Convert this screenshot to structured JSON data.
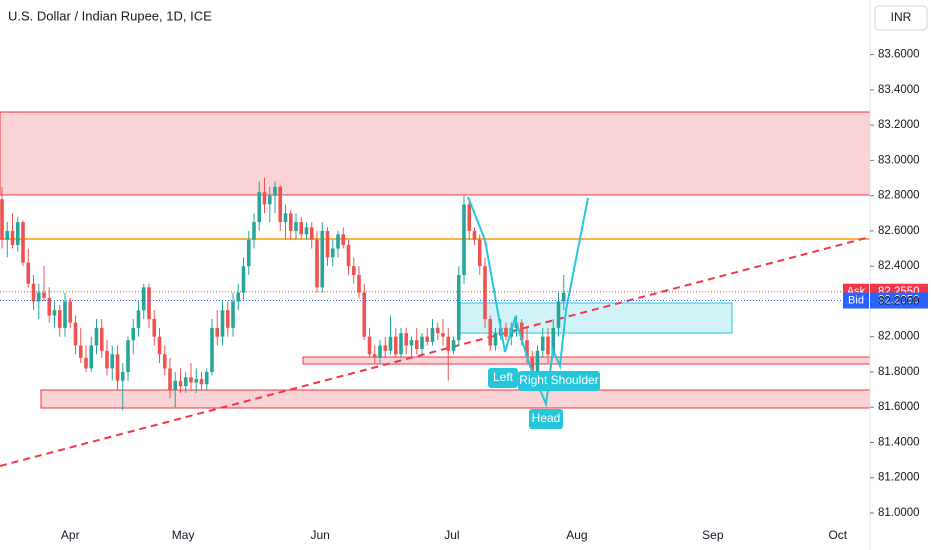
{
  "chart_data": {
    "type": "candlestick",
    "title": "U.S. Dollar / Indian Rupee, 1D, ICE",
    "currency": "INR",
    "ylim": [
      80.96,
      83.91
    ],
    "yticks": [
      {
        "value": 81.0,
        "label": "81.0000"
      },
      {
        "value": 81.2,
        "label": "81.2000"
      },
      {
        "value": 81.4,
        "label": "81.4000"
      },
      {
        "value": 81.6,
        "label": "81.6000"
      },
      {
        "value": 81.8,
        "label": "81.8000"
      },
      {
        "value": 82.0,
        "label": "82.0000"
      },
      {
        "value": 82.2,
        "label": "82.2000"
      },
      {
        "value": 82.4,
        "label": "82.4000"
      },
      {
        "value": 82.6,
        "label": "82.6000"
      },
      {
        "value": 82.8,
        "label": "82.8000"
      },
      {
        "value": 83.0,
        "label": "83.0000"
      },
      {
        "value": 83.2,
        "label": "83.2000"
      },
      {
        "value": 83.4,
        "label": "83.4000"
      },
      {
        "value": 83.6,
        "label": "83.6000"
      }
    ],
    "xticks": [
      {
        "value": 13,
        "label": "Apr"
      },
      {
        "value": 34.5,
        "label": "May"
      },
      {
        "value": 60.6,
        "label": "Jun"
      },
      {
        "value": 85.7,
        "label": "Jul"
      },
      {
        "value": 109.5,
        "label": "Aug"
      },
      {
        "value": 135.4,
        "label": "Sep"
      },
      {
        "value": 159.2,
        "label": "Oct"
      }
    ],
    "up_color": "#26a69a",
    "down_color": "#ef5350",
    "open": [
      82.78,
      82.55,
      82.6,
      82.52,
      82.65,
      82.42,
      82.3,
      82.2,
      82.25,
      82.22,
      82.12,
      82.15,
      82.05,
      82.2,
      82.08,
      81.95,
      81.88,
      81.82,
      81.95,
      82.05,
      81.92,
      81.82,
      81.9,
      81.75,
      81.8,
      81.98,
      82.05,
      82.15,
      82.28,
      82.1,
      82.0,
      81.9,
      81.82,
      81.7,
      81.75,
      81.72,
      81.77,
      81.74,
      81.76,
      81.73,
      81.8,
      82.05,
      82.0,
      82.15,
      82.05,
      82.2,
      82.25,
      82.4,
      82.55,
      82.65,
      82.82,
      82.75,
      82.8,
      82.85,
      82.65,
      82.7,
      82.6,
      82.65,
      82.58,
      82.62,
      82.55,
      82.28,
      82.6,
      82.45,
      82.5,
      82.58,
      82.52,
      82.4,
      82.35,
      82.25,
      82.0,
      81.9,
      81.88,
      81.95,
      81.92,
      82.0,
      81.9,
      82.02,
      81.95,
      81.98,
      81.93,
      82.0,
      81.97,
      82.05,
      82.02,
      82.0,
      81.92,
      81.98,
      82.35,
      82.75,
      82.6,
      82.55,
      82.4,
      82.1,
      81.95,
      82.02,
      82.05,
      82.0,
      82.05,
      82.08,
      81.98,
      81.88,
      81.8,
      81.92,
      82.0,
      81.9,
      82.05,
      82.2
    ],
    "high": [
      82.85,
      82.65,
      82.7,
      82.68,
      82.66,
      82.5,
      82.35,
      82.3,
      82.4,
      82.28,
      82.2,
      82.18,
      82.25,
      82.22,
      82.12,
      82.05,
      81.95,
      82.0,
      82.1,
      82.1,
      81.98,
      81.95,
      81.95,
      81.85,
      82.0,
      82.1,
      82.2,
      82.3,
      82.3,
      82.15,
      82.05,
      81.95,
      81.88,
      81.8,
      81.82,
      81.8,
      81.85,
      81.82,
      81.8,
      81.82,
      82.1,
      82.15,
      82.2,
      82.2,
      82.25,
      82.3,
      82.45,
      82.6,
      82.7,
      82.88,
      82.9,
      82.85,
      82.88,
      82.86,
      82.75,
      82.72,
      82.7,
      82.68,
      82.65,
      82.65,
      82.6,
      82.65,
      82.62,
      82.55,
      82.6,
      82.62,
      82.55,
      82.45,
      82.4,
      82.3,
      82.05,
      81.95,
      81.98,
      82.0,
      82.12,
      82.05,
      82.05,
      82.05,
      82.0,
      82.05,
      82.02,
      82.05,
      82.1,
      82.08,
      82.1,
      82.05,
      82.0,
      82.4,
      82.8,
      82.78,
      82.62,
      82.58,
      82.45,
      82.12,
      82.05,
      82.1,
      82.08,
      82.08,
      82.12,
      82.1,
      82.05,
      81.92,
      81.95,
      82.05,
      82.05,
      82.1,
      82.25,
      82.35
    ],
    "low": [
      82.5,
      82.45,
      82.5,
      82.48,
      82.4,
      82.28,
      82.15,
      82.1,
      82.2,
      82.08,
      82.05,
      82.0,
      82.0,
      82.05,
      81.9,
      81.85,
      81.8,
      81.8,
      81.9,
      81.88,
      81.78,
      81.75,
      81.7,
      81.58,
      81.75,
      81.9,
      82.0,
      82.1,
      82.05,
      81.95,
      81.85,
      81.78,
      81.65,
      81.6,
      81.68,
      81.68,
      81.7,
      81.68,
      81.7,
      81.7,
      81.78,
      81.95,
      81.95,
      82.0,
      82.0,
      82.15,
      82.2,
      82.35,
      82.5,
      82.6,
      82.7,
      82.65,
      82.7,
      82.6,
      82.55,
      82.55,
      82.55,
      82.55,
      82.55,
      82.5,
      82.25,
      82.25,
      82.4,
      82.4,
      82.45,
      82.5,
      82.35,
      82.3,
      82.22,
      81.98,
      81.88,
      81.85,
      81.85,
      81.88,
      81.9,
      81.88,
      81.88,
      81.9,
      81.88,
      81.9,
      81.9,
      81.95,
      81.95,
      81.98,
      81.95,
      81.75,
      81.9,
      81.95,
      82.3,
      82.55,
      82.52,
      82.35,
      82.05,
      81.92,
      81.92,
      81.98,
      81.98,
      81.95,
      82.0,
      81.95,
      81.85,
      81.78,
      81.78,
      81.88,
      81.85,
      81.88,
      82.0,
      82.15
    ],
    "close": [
      82.55,
      82.6,
      82.52,
      82.65,
      82.42,
      82.3,
      82.2,
      82.25,
      82.22,
      82.12,
      82.15,
      82.05,
      82.2,
      82.08,
      81.95,
      81.88,
      81.82,
      81.95,
      82.05,
      81.92,
      81.82,
      81.9,
      81.75,
      81.8,
      81.98,
      82.05,
      82.15,
      82.28,
      82.1,
      82.0,
      81.9,
      81.82,
      81.7,
      81.75,
      81.72,
      81.77,
      81.74,
      81.76,
      81.73,
      81.8,
      82.05,
      82.0,
      82.15,
      82.05,
      82.2,
      82.25,
      82.4,
      82.55,
      82.65,
      82.82,
      82.75,
      82.8,
      82.85,
      82.65,
      82.7,
      82.6,
      82.65,
      82.58,
      82.62,
      82.55,
      82.28,
      82.6,
      82.45,
      82.5,
      82.58,
      82.52,
      82.4,
      82.35,
      82.25,
      82.0,
      81.9,
      81.88,
      81.95,
      81.92,
      82.0,
      81.9,
      82.02,
      81.95,
      81.98,
      81.93,
      82.0,
      81.97,
      82.05,
      82.02,
      82.0,
      81.92,
      81.98,
      82.35,
      82.75,
      82.6,
      82.55,
      82.4,
      82.1,
      81.95,
      82.02,
      82.05,
      82.0,
      82.05,
      82.08,
      81.98,
      81.88,
      81.8,
      81.92,
      82.0,
      81.9,
      82.05,
      82.2,
      82.25
    ],
    "price_labels": [
      {
        "name": "Ask",
        "value": 82.255,
        "label": "82.2550",
        "color": "#f23645"
      },
      {
        "name": "Bid",
        "value": 82.205,
        "label": "82.2050",
        "color": "#2962ff"
      }
    ],
    "annotations": [
      "Left",
      "Right Shoulder",
      "Head"
    ]
  }
}
